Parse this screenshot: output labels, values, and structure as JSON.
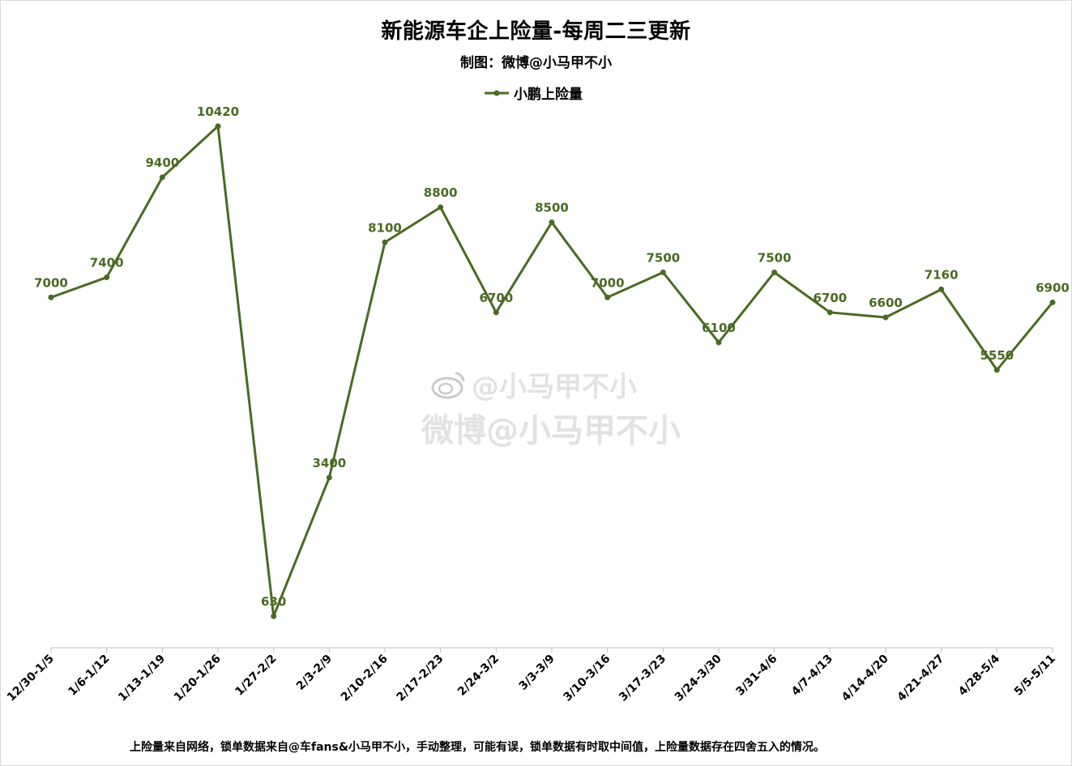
{
  "chart_data": {
    "type": "line",
    "title": "新能源车企上险量-每周二三更新",
    "subtitle": "制图：微博@小马甲不小",
    "categories": [
      "12/30-1/5",
      "1/6-1/12",
      "1/13-1/19",
      "1/20-1/26",
      "1/27-2/2",
      "2/3-2/9",
      "2/10-2/16",
      "2/17-2/23",
      "2/24-3/2",
      "3/3-3/9",
      "3/10-3/16",
      "3/17-3/23",
      "3/24-3/30",
      "3/31-4/6",
      "4/7-4/13",
      "4/14-4/20",
      "4/21-4/27",
      "4/28-5/4",
      "5/5-5/11"
    ],
    "series": [
      {
        "name": "小鹏上险量",
        "values": [
          7000,
          7400,
          9400,
          10420,
          630,
          3400,
          8100,
          8800,
          6700,
          8500,
          7000,
          7500,
          6100,
          7500,
          6700,
          6600,
          7160,
          5550,
          6900
        ],
        "color": "#4a6a24"
      }
    ],
    "ylim": [
      0,
      11000
    ],
    "xlabel": "",
    "ylabel": "",
    "grid": false,
    "legend": "top-center",
    "data_labels": true
  },
  "watermark": {
    "line1": "@小马甲不小",
    "line2": "微博@小马甲不小",
    "icon": "weibo-icon"
  },
  "footnote": "上险量来自网络，锁单数据来自@车fans&小马甲不小，手动整理，可能有误，锁单数据有时取中间值，上险量数据存在四舍五入的情况。"
}
